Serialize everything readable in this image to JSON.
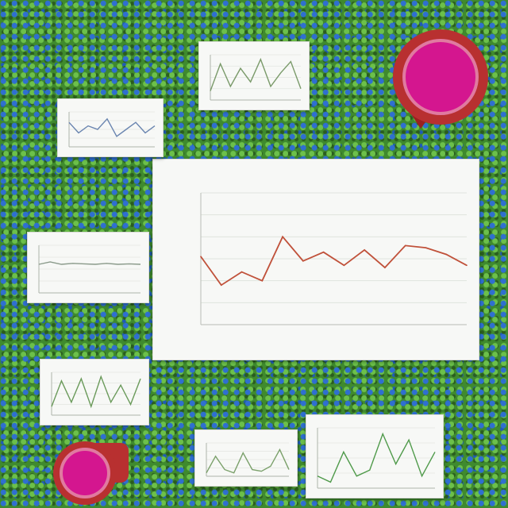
{
  "chart_data": {
    "type": "line",
    "title": "",
    "xlabel": "",
    "ylabel": "",
    "x": [
      1,
      2,
      3,
      4,
      5,
      6,
      7,
      8,
      9,
      10,
      11,
      12,
      13,
      14
    ],
    "series": [
      {
        "values": [
          3.1,
          1.8,
          2.4,
          2.0,
          4.0,
          2.9,
          3.3,
          2.7,
          3.4,
          2.6,
          3.6,
          3.5,
          3.2,
          2.7
        ],
        "color": "#c0513a"
      }
    ],
    "ylim": [
      0,
      6
    ],
    "grid": true
  },
  "mini_charts": [
    {
      "color": "#7a9a6a",
      "values": [
        0.2,
        0.8,
        0.3,
        0.7,
        0.4,
        0.9,
        0.3,
        0.6,
        0.85,
        0.25
      ]
    },
    {
      "color": "#6a85b0",
      "values": [
        0.7,
        0.4,
        0.6,
        0.5,
        0.8,
        0.3,
        0.5,
        0.7,
        0.4,
        0.6
      ]
    },
    {
      "color": "#8a9a8a",
      "values": [
        0.6,
        0.65,
        0.6,
        0.62,
        0.61,
        0.6,
        0.62,
        0.6,
        0.61,
        0.6
      ]
    },
    {
      "color": "#6a9a5a",
      "values": [
        0.2,
        0.8,
        0.3,
        0.85,
        0.2,
        0.9,
        0.3,
        0.7,
        0.25,
        0.85
      ]
    },
    {
      "color": "#7aa06a",
      "values": [
        0.1,
        0.6,
        0.2,
        0.1,
        0.7,
        0.2,
        0.15,
        0.3,
        0.8,
        0.2
      ]
    },
    {
      "color": "#4f9a4a",
      "values": [
        0.2,
        0.1,
        0.6,
        0.2,
        0.3,
        0.9,
        0.4,
        0.8,
        0.2,
        0.6
      ]
    }
  ],
  "decor": {
    "cup_rim": "#b02a2a",
    "cup_fill": "#d4168f"
  }
}
